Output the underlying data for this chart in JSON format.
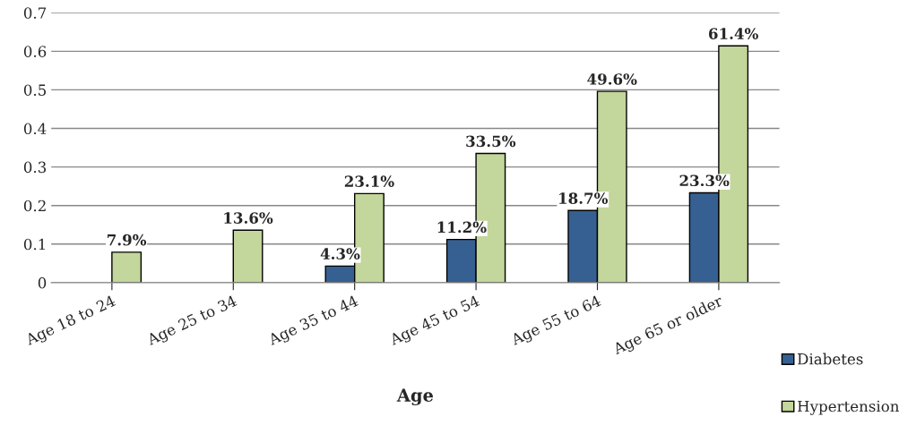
{
  "chart_data": {
    "type": "bar",
    "xlabel": "Age",
    "categories": [
      "Age 18 to 24",
      "Age 25 to 34",
      "Age 35 to 44",
      "Age 45 to 54",
      "Age 55 to 64",
      "Age 65 or older"
    ],
    "series": [
      {
        "name": "Diabetes",
        "color": "#376092",
        "values": [
          null,
          null,
          0.043,
          0.112,
          0.187,
          0.233
        ],
        "value_labels": [
          null,
          null,
          "4.3%",
          "11.2%",
          "18.7%",
          "23.3%"
        ]
      },
      {
        "name": "Hypertension",
        "color": "#c3d69b",
        "values": [
          0.079,
          0.136,
          0.231,
          0.335,
          0.496,
          0.614
        ],
        "value_labels": [
          "7.9%",
          "13.6%",
          "23.1%",
          "33.5%",
          "49.6%",
          "61.4%"
        ]
      }
    ],
    "ylim": [
      0,
      0.7
    ],
    "yticks": [
      {
        "value": 0,
        "label": "0"
      },
      0.1,
      0.2,
      0.3,
      0.4,
      0.5,
      0.6,
      0.7
    ],
    "grid": "y",
    "legend": "bottom right"
  }
}
